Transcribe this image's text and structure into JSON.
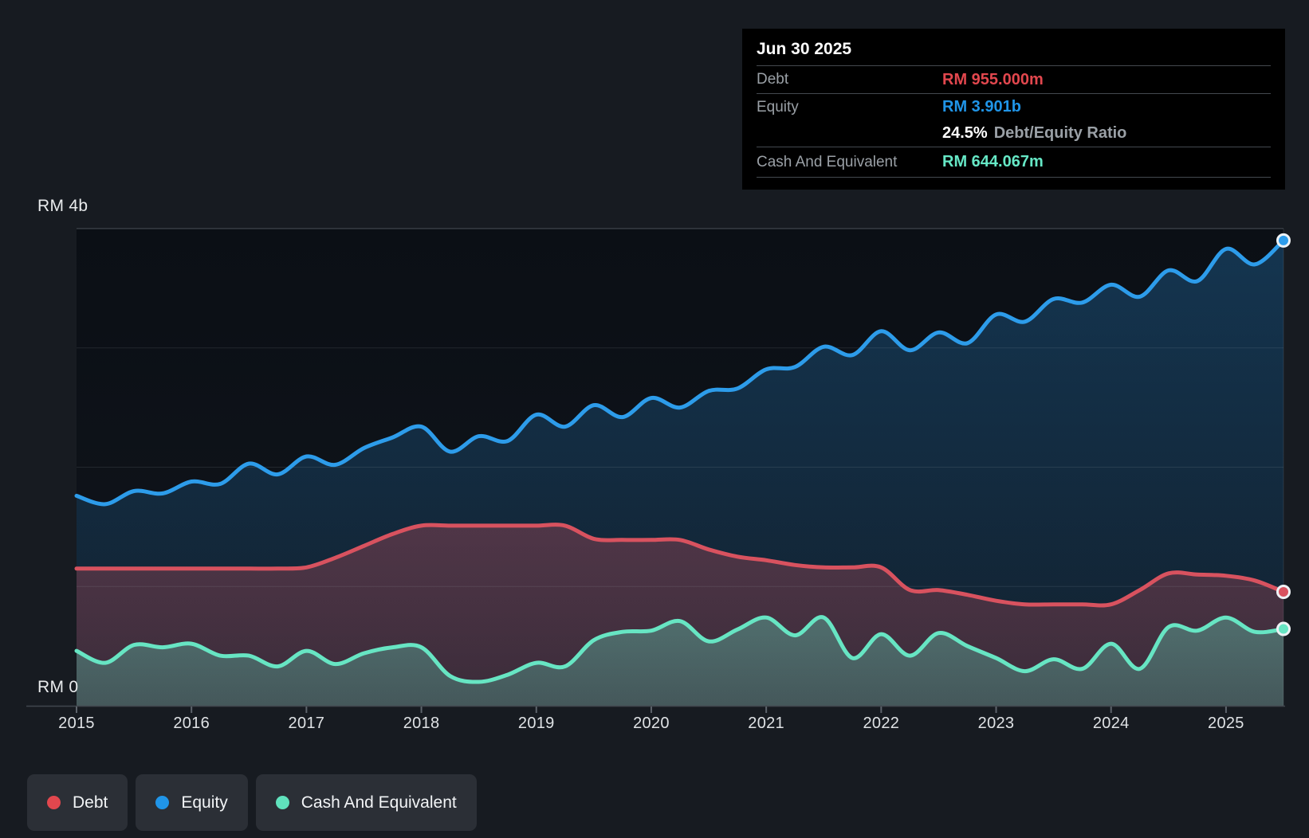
{
  "app": {
    "background": "#171b21"
  },
  "tooltip": {
    "date": "Jun 30 2025",
    "debt": {
      "label": "Debt",
      "value": "RM 955.000m",
      "color": "#e2474e"
    },
    "equity": {
      "label": "Equity",
      "value": "RM 3.901b",
      "color": "#2095e8"
    },
    "ratio": {
      "value": "24.5%",
      "label": "Debt/Equity Ratio"
    },
    "cash": {
      "label": "Cash And Equivalent",
      "value": "RM 644.067m",
      "color": "#66e8c6"
    }
  },
  "legend": {
    "items": [
      {
        "label": "Debt",
        "color": "#e2474e"
      },
      {
        "label": "Equity",
        "color": "#2095e8"
      },
      {
        "label": "Cash And Equivalent",
        "color": "#60e2bd"
      }
    ]
  },
  "chart_data": {
    "type": "area",
    "x_unit": "year (quarterly points)",
    "ylim": [
      0,
      4
    ],
    "xlim": [
      2015,
      2025.5
    ],
    "grid": true,
    "legend_position": "bottom-left",
    "end_markers": true,
    "y_axis_labels": {
      "top": "RM 4b",
      "zero": "RM 0"
    },
    "y_gridlines_b": [
      1,
      2,
      3,
      4
    ],
    "x_tick_years": [
      2015,
      2016,
      2017,
      2018,
      2019,
      2020,
      2021,
      2022,
      2023,
      2024,
      2025
    ],
    "x_tick_labels": [
      "2015",
      "2016",
      "2017",
      "2018",
      "2019",
      "2020",
      "2021",
      "2022",
      "2023",
      "2024",
      "2025"
    ],
    "x": [
      2015,
      2015.25,
      2015.5,
      2015.75,
      2016,
      2016.25,
      2016.5,
      2016.75,
      2017,
      2017.25,
      2017.5,
      2017.75,
      2018,
      2018.25,
      2018.5,
      2018.75,
      2019,
      2019.25,
      2019.5,
      2019.75,
      2020,
      2020.25,
      2020.5,
      2020.75,
      2021,
      2021.25,
      2021.5,
      2021.75,
      2022,
      2022.25,
      2022.5,
      2022.75,
      2023,
      2023.25,
      2023.5,
      2023.75,
      2024,
      2024.25,
      2024.5,
      2024.75,
      2025,
      2025.25,
      2025.5
    ],
    "series": [
      {
        "name": "Debt",
        "unit": "RM billions",
        "color": "#d8525f",
        "fill_top": "rgba(220,85,98,0.30)",
        "fill_bottom": "rgba(220,85,98,0.20)",
        "end_value_label": "RM 955.000m",
        "values": [
          1.15,
          1.15,
          1.15,
          1.15,
          1.15,
          1.15,
          1.15,
          1.15,
          1.16,
          1.24,
          1.34,
          1.44,
          1.51,
          1.51,
          1.51,
          1.51,
          1.51,
          1.51,
          1.4,
          1.39,
          1.39,
          1.39,
          1.31,
          1.25,
          1.22,
          1.18,
          1.16,
          1.16,
          1.16,
          0.97,
          0.97,
          0.93,
          0.88,
          0.85,
          0.85,
          0.85,
          0.85,
          0.97,
          1.11,
          1.1,
          1.09,
          1.05,
          0.955
        ]
      },
      {
        "name": "Equity",
        "unit": "RM billions",
        "color": "#2d9cea",
        "fill_top": "rgba(40,140,215,0.30)",
        "fill_bottom": "rgba(40,140,215,0.10)",
        "end_value_label": "RM 3.901b",
        "values": [
          1.76,
          1.69,
          1.8,
          1.78,
          1.88,
          1.86,
          2.03,
          1.94,
          2.09,
          2.02,
          2.16,
          2.25,
          2.34,
          2.13,
          2.26,
          2.22,
          2.44,
          2.34,
          2.52,
          2.42,
          2.58,
          2.5,
          2.64,
          2.66,
          2.82,
          2.84,
          3.01,
          2.94,
          3.14,
          2.98,
          3.13,
          3.04,
          3.28,
          3.22,
          3.41,
          3.38,
          3.53,
          3.43,
          3.65,
          3.56,
          3.83,
          3.7,
          3.901
        ]
      },
      {
        "name": "Cash And Equivalent",
        "unit": "RM billions",
        "color": "#67e5c3",
        "fill_top": "rgba(100,228,196,0.34)",
        "fill_bottom": "rgba(100,228,196,0.24)",
        "end_value_label": "RM 644.067m",
        "values": [
          0.46,
          0.36,
          0.51,
          0.49,
          0.52,
          0.42,
          0.42,
          0.33,
          0.46,
          0.35,
          0.44,
          0.49,
          0.49,
          0.25,
          0.2,
          0.26,
          0.36,
          0.33,
          0.55,
          0.62,
          0.63,
          0.71,
          0.54,
          0.64,
          0.74,
          0.59,
          0.74,
          0.4,
          0.6,
          0.42,
          0.61,
          0.5,
          0.4,
          0.29,
          0.39,
          0.31,
          0.52,
          0.31,
          0.66,
          0.63,
          0.74,
          0.62,
          0.644
        ]
      }
    ]
  }
}
